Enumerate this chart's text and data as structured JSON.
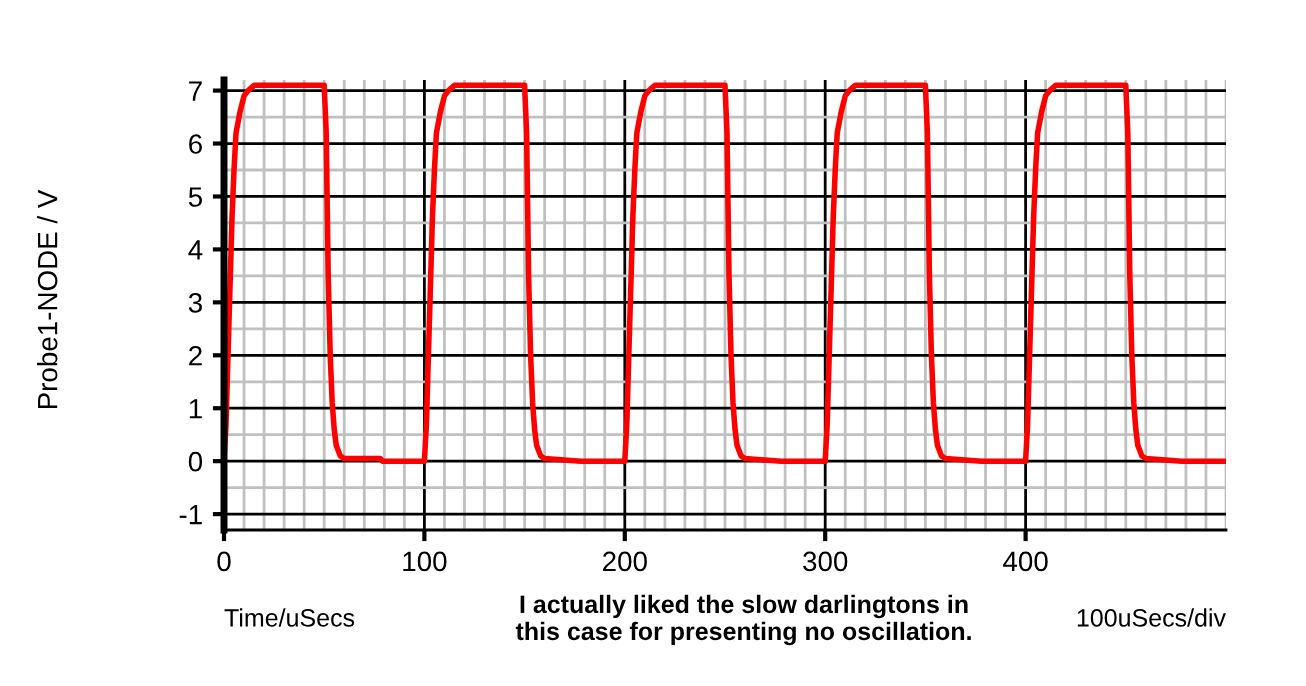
{
  "chart_data": {
    "type": "line",
    "ylabel": "Probe1-NODE / V",
    "annotations": [
      "Time/uSecs",
      "I actually liked the slow darlingtons in\nthis case for presenting no oscillation.",
      "100uSecs/div"
    ],
    "xlim": [
      0,
      500
    ],
    "ylim": [
      -1.3,
      7.2
    ],
    "xticks": [
      0,
      100,
      200,
      300,
      400
    ],
    "yticks": [
      -1,
      0,
      1,
      2,
      3,
      4,
      5,
      6,
      7
    ],
    "grid": true,
    "marker": "none",
    "line_style": "solid",
    "series": [
      {
        "color": "#ff0000",
        "x": [
          0,
          1,
          2,
          3,
          4,
          5,
          6,
          8,
          10,
          12,
          15,
          50,
          51,
          52,
          53,
          54,
          55,
          56,
          58,
          60,
          78,
          79,
          100,
          101,
          102,
          103,
          104,
          105,
          106,
          108,
          110,
          112,
          115,
          150,
          151,
          152,
          153,
          154,
          155,
          156,
          158,
          160,
          178,
          179,
          200,
          201,
          202,
          203,
          204,
          205,
          206,
          208,
          210,
          212,
          215,
          250,
          251,
          252,
          253,
          254,
          255,
          256,
          258,
          260,
          278,
          279,
          300,
          301,
          302,
          303,
          304,
          305,
          306,
          308,
          310,
          312,
          315,
          350,
          351,
          352,
          353,
          354,
          355,
          356,
          358,
          360,
          378,
          379,
          400,
          401,
          402,
          403,
          404,
          405,
          406,
          408,
          410,
          412,
          415,
          450,
          451,
          452,
          453,
          454,
          455,
          456,
          458,
          460,
          478,
          479,
          500
        ],
        "values": [
          0,
          0.7,
          2,
          3.3,
          4.6,
          5.5,
          6.2,
          6.6,
          6.9,
          7.0,
          7.1,
          7.1,
          6.2,
          3.5,
          2.0,
          1.1,
          0.6,
          0.3,
          0.1,
          0.05,
          0.05,
          0,
          0,
          0.7,
          2,
          3.3,
          4.6,
          5.5,
          6.2,
          6.6,
          6.9,
          7.0,
          7.1,
          7.1,
          6.2,
          3.5,
          2.0,
          1.1,
          0.6,
          0.3,
          0.1,
          0.05,
          0,
          0,
          0,
          0.7,
          2,
          3.3,
          4.6,
          5.5,
          6.2,
          6.6,
          6.9,
          7.0,
          7.1,
          7.1,
          6.2,
          3.5,
          2.0,
          1.1,
          0.6,
          0.3,
          0.1,
          0.05,
          0,
          0,
          0,
          0.7,
          2,
          3.3,
          4.6,
          5.5,
          6.2,
          6.6,
          6.9,
          7.0,
          7.1,
          7.1,
          6.2,
          3.5,
          2.0,
          1.1,
          0.6,
          0.3,
          0.1,
          0.05,
          0,
          0,
          0,
          0.7,
          2,
          3.3,
          4.6,
          5.5,
          6.2,
          6.6,
          6.9,
          7.0,
          7.1,
          7.1,
          6.2,
          3.5,
          2.0,
          1.1,
          0.6,
          0.3,
          0.1,
          0.05,
          0,
          0,
          0
        ]
      }
    ]
  }
}
